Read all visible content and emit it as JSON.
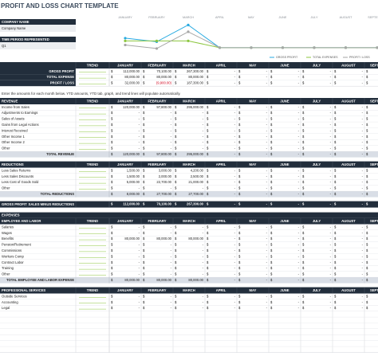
{
  "header": {
    "title": "PROFIT AND LOSS CHART TEMPLATE",
    "company_label": "COMPANY NAME",
    "company_value": "Company Name",
    "period_label": "TIME PERIOD REPRESENTED",
    "period_value": "Q1"
  },
  "chart_data": {
    "type": "line",
    "categories": [
      "JANUARY",
      "FEBRUARY",
      "MARCH",
      "APRIL",
      "MAY",
      "JUNE",
      "JULY",
      "AUGUST",
      "SEPTEMBER"
    ],
    "ylim": [
      -20000,
      280000
    ],
    "series": [
      {
        "name": "GROSS PROFIT",
        "color": "#27aae1",
        "values": [
          112000,
          70100,
          267300,
          0,
          0,
          0,
          0,
          0,
          0
        ]
      },
      {
        "name": "TOTAL EXPENSES",
        "color": "#8cc63f",
        "values": [
          80000,
          80000,
          80000,
          0,
          0,
          0,
          0,
          0,
          0
        ]
      },
      {
        "name": "PROFIT / LOSS",
        "color": "#a6a6a6",
        "values": [
          32000,
          -9900,
          187300,
          0,
          0,
          0,
          0,
          0,
          0
        ]
      }
    ]
  },
  "trend_label": "TREND",
  "currency": "$",
  "dash": "-",
  "months": [
    "JANUARY",
    "FEBRUARY",
    "MARCH",
    "APRIL",
    "MAY",
    "JUNE",
    "JULY",
    "AUGUST",
    "SEPTEMBER"
  ],
  "summary": [
    {
      "label": "GROSS PROFIT",
      "values": [
        "112,000.00",
        "70,100.00",
        "267,300.00",
        null,
        null,
        null,
        null,
        null,
        null
      ]
    },
    {
      "label": "TOTAL EXPENSE",
      "values": [
        "80,000.00",
        "80,000.00",
        "80,000.00",
        null,
        null,
        null,
        null,
        null,
        null
      ]
    },
    {
      "label": "PROFIT / LOSS",
      "values": [
        "32,000.00",
        "(9,900.00)",
        "187,300.00",
        null,
        null,
        null,
        null,
        null,
        null
      ]
    }
  ],
  "note": "Enter the amounts for each month below. YTD amounts, YTD tab, graph, and trend lines will populate automatically.",
  "revenue": {
    "title": "REVENUE",
    "rows": [
      {
        "label": "Income from Sales",
        "values": [
          "120,000.00",
          "97,800.00",
          "295,000.00",
          null,
          null,
          null,
          null,
          null,
          null
        ]
      },
      {
        "label": "Adjustments to Earnings",
        "values": [
          null,
          null,
          null,
          null,
          null,
          null,
          null,
          null,
          null
        ]
      },
      {
        "label": "Sales of Assets",
        "values": [
          null,
          null,
          null,
          null,
          null,
          null,
          null,
          null,
          null
        ]
      },
      {
        "label": "Gains from Legal Actions",
        "values": [
          null,
          null,
          null,
          null,
          null,
          null,
          null,
          null,
          null
        ]
      },
      {
        "label": "Interest Received",
        "values": [
          null,
          null,
          null,
          null,
          null,
          null,
          null,
          null,
          null
        ]
      },
      {
        "label": "Other Income 1",
        "values": [
          null,
          null,
          null,
          null,
          null,
          null,
          null,
          null,
          null
        ]
      },
      {
        "label": "Other Income 2",
        "values": [
          null,
          null,
          null,
          null,
          null,
          null,
          null,
          null,
          null
        ]
      },
      {
        "label": "Other",
        "values": [
          null,
          null,
          null,
          null,
          null,
          null,
          null,
          null,
          null
        ]
      }
    ],
    "total": {
      "label": "TOTAL REVENUE",
      "values": [
        "120,000.00",
        "97,800.00",
        "295,000.00",
        null,
        null,
        null,
        null,
        null,
        null
      ]
    }
  },
  "reductions": {
    "title": "REDUCTIONS",
    "rows": [
      {
        "label": "Less Sales Returns",
        "values": [
          "1,500.00",
          "3,000.00",
          "4,200.00",
          null,
          null,
          null,
          null,
          null,
          null
        ]
      },
      {
        "label": "Less Sales Discounts",
        "values": [
          "1,500.00",
          "2,000.00",
          "2,500.00",
          null,
          null,
          null,
          null,
          null,
          null
        ]
      },
      {
        "label": "Less Cost of Goods Sold",
        "values": [
          "5,000.00",
          "22,700.00",
          "21,000.00",
          null,
          null,
          null,
          null,
          null,
          null
        ]
      },
      {
        "label": "Other",
        "values": [
          null,
          null,
          null,
          null,
          null,
          null,
          null,
          null,
          null
        ]
      }
    ],
    "total": {
      "label": "TOTAL REDUCTIONS",
      "values": [
        "8,000.00",
        "27,700.00",
        "27,700.00",
        null,
        null,
        null,
        null,
        null,
        null
      ]
    }
  },
  "gross_profit": {
    "label": "GROSS PROFIT",
    "sublabel": "SALES MINUS REDUCTIONS",
    "values": [
      "112,000.00",
      "70,100.00",
      "267,300.00",
      null,
      null,
      null,
      null,
      null,
      null
    ]
  },
  "expenses_title": "EXPENSES",
  "employee": {
    "title": "EMPLOYEE AND LABOR",
    "rows": [
      {
        "label": "Salaries",
        "values": [
          null,
          null,
          null,
          null,
          null,
          null,
          null,
          null,
          null
        ]
      },
      {
        "label": "Wages",
        "values": [
          null,
          null,
          null,
          null,
          null,
          null,
          null,
          null,
          null
        ]
      },
      {
        "label": "Benefits",
        "values": [
          "80,000.00",
          "80,000.00",
          "80,000.00",
          null,
          null,
          null,
          null,
          null,
          null
        ]
      },
      {
        "label": "Pension/Retirement",
        "values": [
          null,
          null,
          null,
          null,
          null,
          null,
          null,
          null,
          null
        ]
      },
      {
        "label": "Commissions",
        "values": [
          null,
          null,
          null,
          null,
          null,
          null,
          null,
          null,
          null
        ]
      },
      {
        "label": "Workers Comp",
        "values": [
          null,
          null,
          null,
          null,
          null,
          null,
          null,
          null,
          null
        ]
      },
      {
        "label": "Contract Labor",
        "values": [
          null,
          null,
          null,
          null,
          null,
          null,
          null,
          null,
          null
        ]
      },
      {
        "label": "Training",
        "values": [
          null,
          null,
          null,
          null,
          null,
          null,
          null,
          null,
          null
        ]
      },
      {
        "label": "Other",
        "values": [
          null,
          null,
          null,
          null,
          null,
          null,
          null,
          null,
          null
        ]
      }
    ],
    "total": {
      "label": "TOTAL EMPLOYEE AND LABOR EXPENSE",
      "values": [
        "80,000.00",
        "80,000.00",
        "80,000.00",
        null,
        null,
        null,
        null,
        null,
        null
      ]
    }
  },
  "professional": {
    "title": "PROFESSIONAL SERVICES",
    "rows": [
      {
        "label": "Outside Services",
        "values": [
          null,
          null,
          null,
          null,
          null,
          null,
          null,
          null,
          null
        ]
      },
      {
        "label": "Accounting",
        "values": [
          null,
          null,
          null,
          null,
          null,
          null,
          null,
          null,
          null
        ]
      },
      {
        "label": "Legal",
        "values": [
          null,
          null,
          null,
          null,
          null,
          null,
          null,
          null,
          null
        ]
      }
    ]
  }
}
